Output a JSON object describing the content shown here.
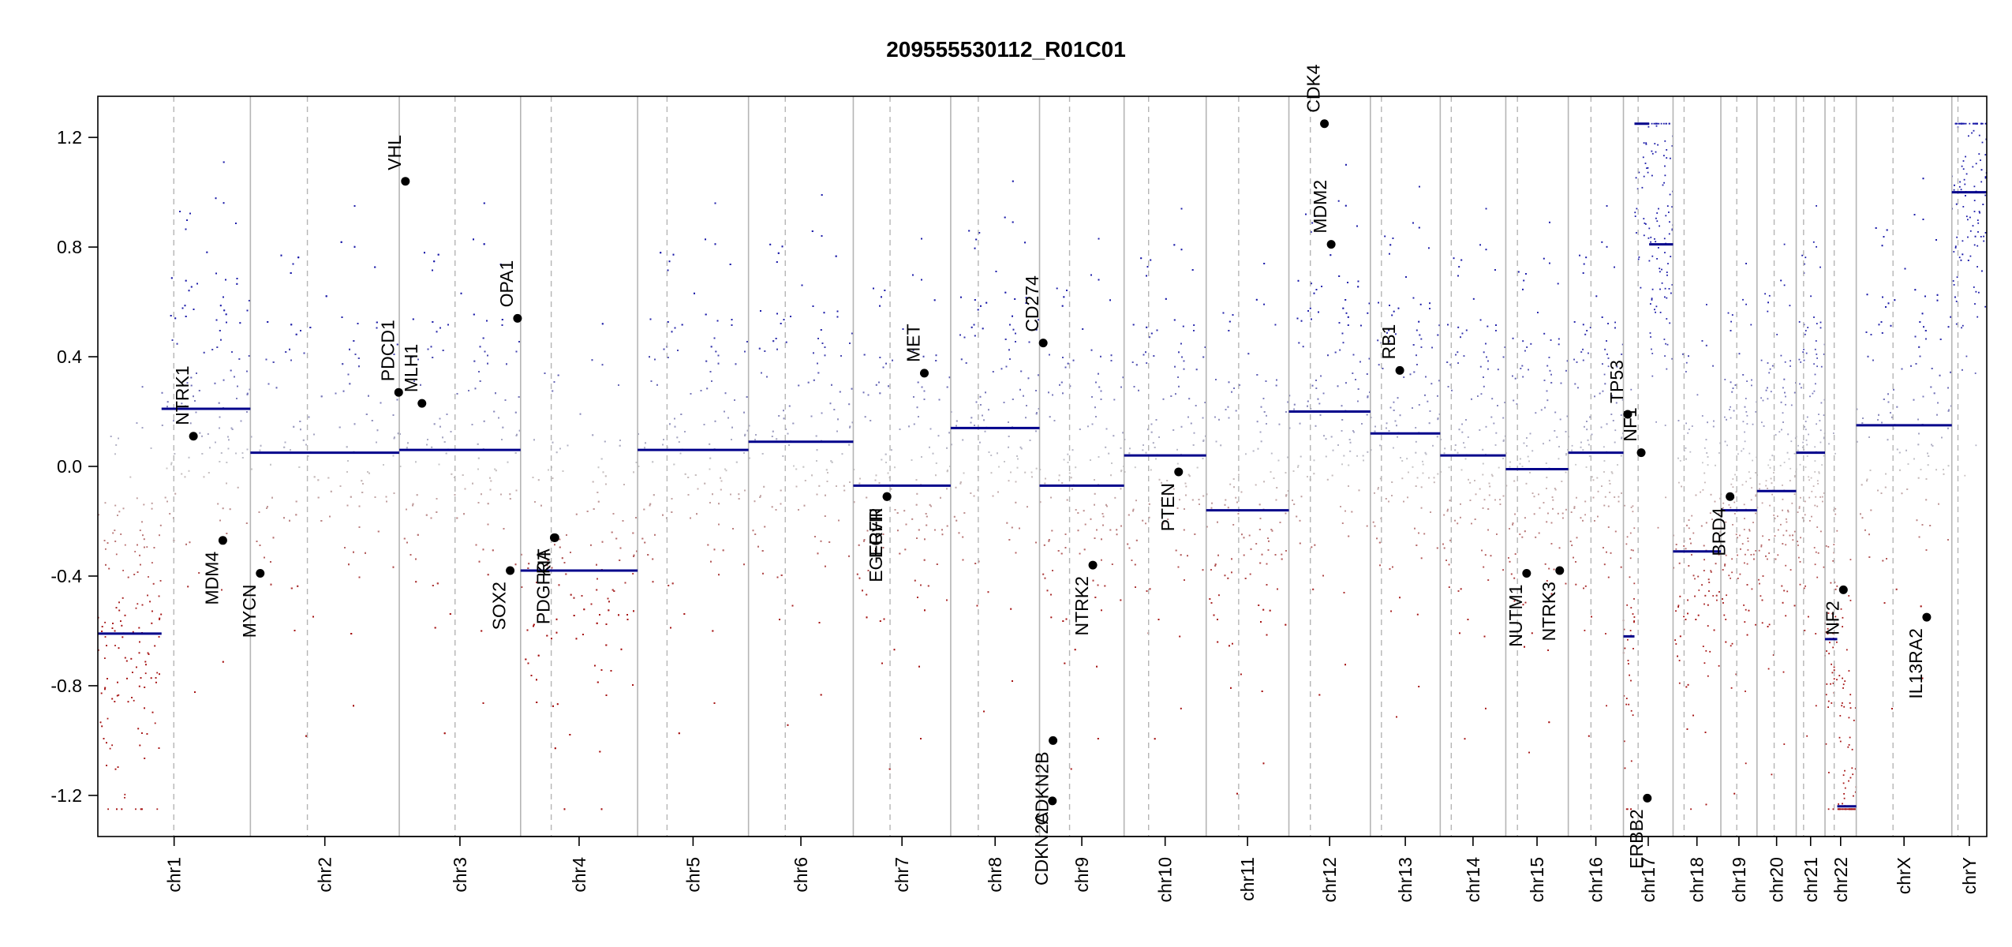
{
  "chart_data": {
    "type": "scatter",
    "title": "209555530112_R01C01",
    "xlabel": "",
    "ylabel": "",
    "ylim": [
      -1.35,
      1.35
    ],
    "clip": [
      -1.25,
      1.25
    ],
    "y_ticks": [
      {
        "value": 1.2,
        "label": "1.2"
      },
      {
        "value": 0.8,
        "label": "0.8"
      },
      {
        "value": 0.4,
        "label": "0.4"
      },
      {
        "value": 0.0,
        "label": "0.0"
      },
      {
        "value": -0.4,
        "label": "-0.4"
      },
      {
        "value": -0.8,
        "label": "-0.8"
      },
      {
        "value": -1.2,
        "label": "-1.2"
      }
    ],
    "grid": false,
    "colors": {
      "gain": "#1a1aa8",
      "loss": "#a51212",
      "neutral": "#c8c8c8",
      "segment": "#00008b",
      "boundary": "#b5b5b5",
      "centromere": "#b5b5b5",
      "gene_point": "#000000"
    },
    "chromosomes": [
      {
        "name": "chr1",
        "length": 249,
        "centromere": 124
      },
      {
        "name": "chr2",
        "length": 243,
        "centromere": 93
      },
      {
        "name": "chr3",
        "length": 198,
        "centromere": 91
      },
      {
        "name": "chr4",
        "length": 191,
        "centromere": 50
      },
      {
        "name": "chr5",
        "length": 181,
        "centromere": 48
      },
      {
        "name": "chr6",
        "length": 171,
        "centromere": 60
      },
      {
        "name": "chr7",
        "length": 159,
        "centromere": 60
      },
      {
        "name": "chr8",
        "length": 145,
        "centromere": 45
      },
      {
        "name": "chr9",
        "length": 138,
        "centromere": 49
      },
      {
        "name": "chr10",
        "length": 134,
        "centromere": 40
      },
      {
        "name": "chr11",
        "length": 135,
        "centromere": 53
      },
      {
        "name": "chr12",
        "length": 133,
        "centromere": 35
      },
      {
        "name": "chr13",
        "length": 114,
        "centromere": 18
      },
      {
        "name": "chr14",
        "length": 107,
        "centromere": 18
      },
      {
        "name": "chr15",
        "length": 102,
        "centromere": 19
      },
      {
        "name": "chr16",
        "length": 90,
        "centromere": 37
      },
      {
        "name": "chr17",
        "length": 81,
        "centromere": 24
      },
      {
        "name": "chr18",
        "length": 78,
        "centromere": 18
      },
      {
        "name": "chr19",
        "length": 59,
        "centromere": 26
      },
      {
        "name": "chr20",
        "length": 64,
        "centromere": 28
      },
      {
        "name": "chr21",
        "length": 47,
        "centromere": 12
      },
      {
        "name": "chr22",
        "length": 51,
        "centromere": 15
      },
      {
        "name": "chrX",
        "length": 156,
        "centromere": 60
      },
      {
        "name": "chrY",
        "length": 57,
        "centromere": 10
      }
    ],
    "segments": [
      {
        "chr": "chr1",
        "start": 0,
        "end": 104,
        "value": -0.61
      },
      {
        "chr": "chr1",
        "start": 104,
        "end": 249,
        "value": 0.21
      },
      {
        "chr": "chr2",
        "start": 0,
        "end": 243,
        "value": 0.05
      },
      {
        "chr": "chr3",
        "start": 0,
        "end": 198,
        "value": 0.06
      },
      {
        "chr": "chr4",
        "start": 0,
        "end": 191,
        "value": -0.38
      },
      {
        "chr": "chr5",
        "start": 0,
        "end": 181,
        "value": 0.06
      },
      {
        "chr": "chr6",
        "start": 0,
        "end": 171,
        "value": 0.09
      },
      {
        "chr": "chr7",
        "start": 0,
        "end": 159,
        "value": -0.07
      },
      {
        "chr": "chr8",
        "start": 0,
        "end": 145,
        "value": 0.14
      },
      {
        "chr": "chr9",
        "start": 0,
        "end": 138,
        "value": -0.07
      },
      {
        "chr": "chr10",
        "start": 0,
        "end": 134,
        "value": 0.04
      },
      {
        "chr": "chr11",
        "start": 0,
        "end": 135,
        "value": -0.16
      },
      {
        "chr": "chr12",
        "start": 0,
        "end": 133,
        "value": 0.2
      },
      {
        "chr": "chr13",
        "start": 0,
        "end": 114,
        "value": 0.12
      },
      {
        "chr": "chr14",
        "start": 0,
        "end": 107,
        "value": 0.04
      },
      {
        "chr": "chr15",
        "start": 0,
        "end": 102,
        "value": -0.01
      },
      {
        "chr": "chr16",
        "start": 0,
        "end": 90,
        "value": 0.05
      },
      {
        "chr": "chr17",
        "start": 0,
        "end": 18,
        "value": -0.62
      },
      {
        "chr": "chr17",
        "start": 18,
        "end": 42,
        "value": 1.25
      },
      {
        "chr": "chr17",
        "start": 42,
        "end": 81,
        "value": 0.81
      },
      {
        "chr": "chr18",
        "start": 0,
        "end": 78,
        "value": -0.31
      },
      {
        "chr": "chr19",
        "start": 0,
        "end": 59,
        "value": -0.16
      },
      {
        "chr": "chr20",
        "start": 0,
        "end": 64,
        "value": -0.09
      },
      {
        "chr": "chr21",
        "start": 0,
        "end": 47,
        "value": 0.05
      },
      {
        "chr": "chr22",
        "start": 0,
        "end": 20,
        "value": -0.63
      },
      {
        "chr": "chr22",
        "start": 20,
        "end": 51,
        "value": -1.24
      },
      {
        "chr": "chrX",
        "start": 0,
        "end": 156,
        "value": 0.15
      },
      {
        "chr": "chrY",
        "start": 0,
        "end": 57,
        "value": 1.0
      }
    ],
    "genes": [
      {
        "name": "NTRK1",
        "chr": "chr1",
        "pos": 156,
        "value": 0.11
      },
      {
        "name": "MDM4",
        "chr": "chr1",
        "pos": 204,
        "value": -0.27
      },
      {
        "name": "MYCN",
        "chr": "chr2",
        "pos": 16,
        "value": -0.39
      },
      {
        "name": "PDCD1",
        "chr": "chr2",
        "pos": 242,
        "value": 0.27
      },
      {
        "name": "VHL",
        "chr": "chr3",
        "pos": 10,
        "value": 1.04
      },
      {
        "name": "MLH1",
        "chr": "chr3",
        "pos": 37,
        "value": 0.23
      },
      {
        "name": "SOX2",
        "chr": "chr3",
        "pos": 181,
        "value": -0.38
      },
      {
        "name": "OPA1",
        "chr": "chr3",
        "pos": 193,
        "value": 0.54
      },
      {
        "name": "PDGFRA",
        "chr": "chr4",
        "pos": 55,
        "value": -0.26
      },
      {
        "name": "KIT",
        "chr": "chr4",
        "pos": 56,
        "value": -0.26
      },
      {
        "name": "EGFR",
        "chr": "chr7",
        "pos": 55,
        "value": -0.11
      },
      {
        "name": "EGFRvIII",
        "chr": "chr7",
        "pos": 55,
        "value": -0.11
      },
      {
        "name": "MET",
        "chr": "chr7",
        "pos": 116,
        "value": 0.34
      },
      {
        "name": "CD274",
        "chr": "chr9",
        "pos": 6,
        "value": 0.45
      },
      {
        "name": "CDKN2A",
        "chr": "chr9",
        "pos": 21,
        "value": -1.22
      },
      {
        "name": "CDKN2B",
        "chr": "chr9",
        "pos": 22,
        "value": -1.0
      },
      {
        "name": "NTRK2",
        "chr": "chr9",
        "pos": 87,
        "value": -0.36
      },
      {
        "name": "PTEN",
        "chr": "chr10",
        "pos": 89,
        "value": -0.02
      },
      {
        "name": "MDM2",
        "chr": "chr12",
        "pos": 69,
        "value": 0.81
      },
      {
        "name": "CDK4",
        "chr": "chr12",
        "pos": 58,
        "value": 1.25
      },
      {
        "name": "RB1",
        "chr": "chr13",
        "pos": 48,
        "value": 0.35
      },
      {
        "name": "NUTM1",
        "chr": "chr15",
        "pos": 34,
        "value": -0.39
      },
      {
        "name": "NTRK3",
        "chr": "chr15",
        "pos": 88,
        "value": -0.38
      },
      {
        "name": "TP53",
        "chr": "chr17",
        "pos": 7,
        "value": 0.19
      },
      {
        "name": "NF1",
        "chr": "chr17",
        "pos": 29,
        "value": 0.05
      },
      {
        "name": "ERBB2",
        "chr": "chr17",
        "pos": 39,
        "value": -1.21
      },
      {
        "name": "BRD4",
        "chr": "chr19",
        "pos": 15,
        "value": -0.11
      },
      {
        "name": "NF2",
        "chr": "chr22",
        "pos": 30,
        "value": -0.45
      },
      {
        "name": "IL13RA2",
        "chr": "chrX",
        "pos": 115,
        "value": -0.55
      }
    ]
  }
}
